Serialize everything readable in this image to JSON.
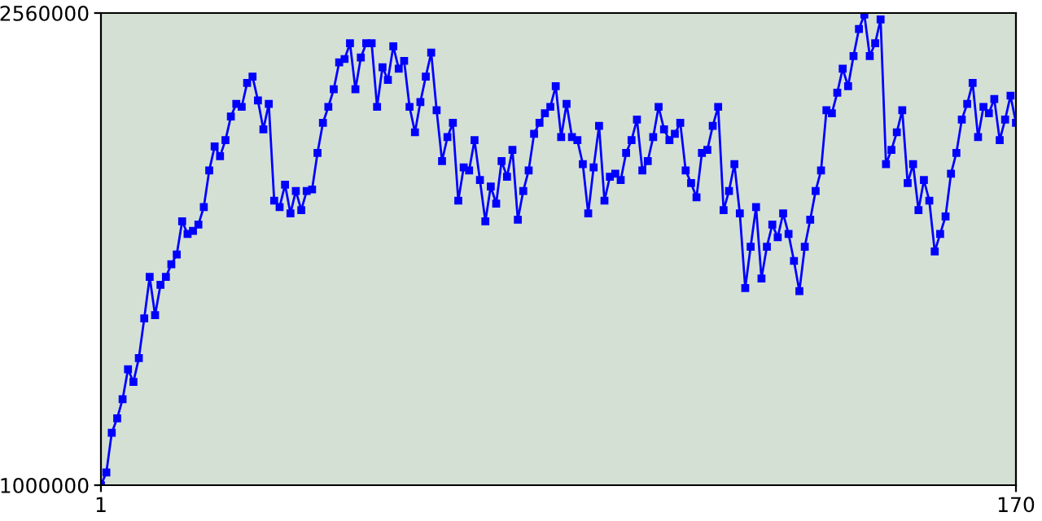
{
  "chart_data": {
    "type": "line",
    "x": [
      1,
      2,
      3,
      4,
      5,
      6,
      7,
      8,
      9,
      10,
      11,
      12,
      13,
      14,
      15,
      16,
      17,
      18,
      19,
      20,
      21,
      22,
      23,
      24,
      25,
      26,
      27,
      28,
      29,
      30,
      31,
      32,
      33,
      34,
      35,
      36,
      37,
      38,
      39,
      40,
      41,
      42,
      43,
      44,
      45,
      46,
      47,
      48,
      49,
      50,
      51,
      52,
      53,
      54,
      55,
      56,
      57,
      58,
      59,
      60,
      61,
      62,
      63,
      64,
      65,
      66,
      67,
      68,
      69,
      70,
      71,
      72,
      73,
      74,
      75,
      76,
      77,
      78,
      79,
      80,
      81,
      82,
      83,
      84,
      85,
      86,
      87,
      88,
      89,
      90,
      91,
      92,
      93,
      94,
      95,
      96,
      97,
      98,
      99,
      100,
      101,
      102,
      103,
      104,
      105,
      106,
      107,
      108,
      109,
      110,
      111,
      112,
      113,
      114,
      115,
      116,
      117,
      118,
      119,
      120,
      121,
      122,
      123,
      124,
      125,
      126,
      127,
      128,
      129,
      130,
      131,
      132,
      133,
      134,
      135,
      136,
      137,
      138,
      139,
      140,
      141,
      142,
      143,
      144,
      145,
      146,
      147,
      148,
      149,
      150,
      151,
      152,
      153,
      154,
      155,
      156,
      157,
      158,
      159,
      160,
      161,
      162,
      163,
      164,
      165,
      166,
      167,
      168,
      169,
      170
    ],
    "series": [
      {
        "color": "#0000ff",
        "values": [
          1000000,
          1042000,
          1173000,
          1221000,
          1284000,
          1383000,
          1341000,
          1420000,
          1551000,
          1688000,
          1562000,
          1662000,
          1688000,
          1730000,
          1762000,
          1872000,
          1830000,
          1840000,
          1861000,
          1919000,
          2040000,
          2119000,
          2087000,
          2140000,
          2218000,
          2260000,
          2250000,
          2329000,
          2350000,
          2271000,
          2176000,
          2260000,
          1940000,
          1919000,
          1993000,
          1898000,
          1972000,
          1909000,
          1972000,
          1977000,
          2098000,
          2197000,
          2250000,
          2308000,
          2397000,
          2408000,
          2460000,
          2308000,
          2413000,
          2460000,
          2460000,
          2250000,
          2381000,
          2339000,
          2450000,
          2376000,
          2402000,
          2250000,
          2166000,
          2266000,
          2350000,
          2429000,
          2239000,
          2071000,
          2150000,
          2197000,
          1940000,
          2050000,
          2040000,
          2140000,
          2008000,
          1872000,
          1987000,
          1930000,
          2071000,
          2019000,
          2108000,
          1877000,
          1972000,
          2040000,
          2161000,
          2197000,
          2229000,
          2250000,
          2318000,
          2150000,
          2260000,
          2150000,
          2140000,
          2061000,
          1898000,
          2050000,
          2187000,
          1940000,
          2019000,
          2029000,
          2008000,
          2098000,
          2140000,
          2208000,
          2040000,
          2071000,
          2150000,
          2250000,
          2176000,
          2140000,
          2161000,
          2197000,
          2040000,
          1998000,
          1951000,
          2098000,
          2108000,
          2187000,
          2250000,
          1909000,
          1972000,
          2061000,
          1898000,
          1651000,
          1788000,
          1919000,
          1683000,
          1788000,
          1861000,
          1819000,
          1898000,
          1830000,
          1741000,
          1641000,
          1788000,
          1877000,
          1972000,
          2040000,
          2239000,
          2229000,
          2297000,
          2376000,
          2318000,
          2418000,
          2507000,
          2555000,
          2418000,
          2460000,
          2539000,
          2061000,
          2108000,
          2166000,
          2239000,
          1998000,
          2061000,
          1909000,
          2008000,
          1940000,
          1772000,
          1830000,
          1888000,
          2029000,
          2098000,
          2208000,
          2260000,
          2329000,
          2150000,
          2250000,
          2229000,
          2276000,
          2140000,
          2208000,
          2287000,
          2197000
        ]
      }
    ],
    "xlim": [
      1,
      170
    ],
    "xticks": [
      1,
      170
    ],
    "ylim": [
      1000000,
      2560000
    ],
    "yticks": [
      1000000,
      2560000
    ],
    "marker": "square",
    "line_style": "solid"
  }
}
